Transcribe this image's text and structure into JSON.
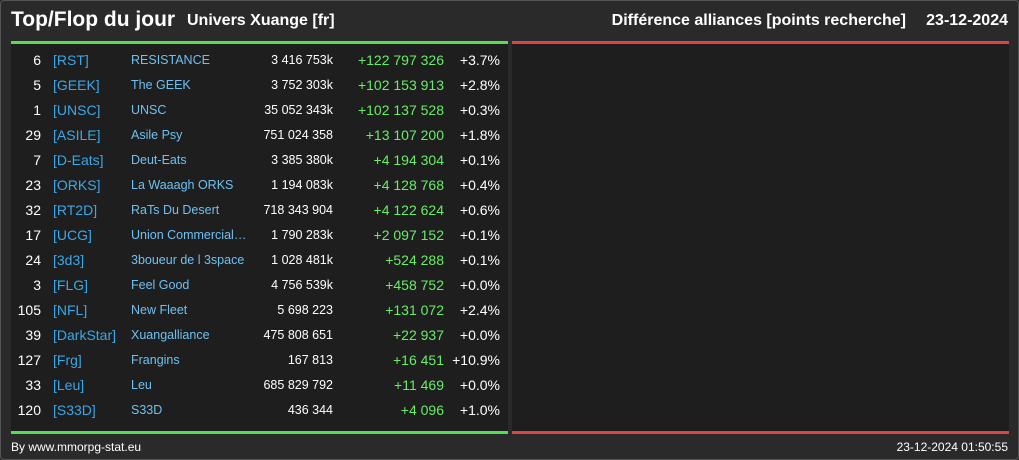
{
  "header": {
    "title": "Top/Flop du jour",
    "universe": "Univers Xuange [fr]",
    "ranking_type": "Différence alliances [points recherche]",
    "date": "23-12-2024"
  },
  "top_rows": [
    {
      "rank": "6",
      "tag": "[RST]",
      "name": "RESISTANCE",
      "points": "3 416 753k",
      "diff": "+122 797 326",
      "pct": "+3.7%"
    },
    {
      "rank": "5",
      "tag": "[GEEK]",
      "name": "The GEEK",
      "points": "3 752 303k",
      "diff": "+102 153 913",
      "pct": "+2.8%"
    },
    {
      "rank": "1",
      "tag": "[UNSC]",
      "name": "UNSC",
      "points": "35 052 343k",
      "diff": "+102 137 528",
      "pct": "+0.3%"
    },
    {
      "rank": "29",
      "tag": "[ASILE]",
      "name": "Asile Psy",
      "points": "751 024 358",
      "diff": "+13 107 200",
      "pct": "+1.8%"
    },
    {
      "rank": "7",
      "tag": "[D-Eats]",
      "name": "Deut-Eats",
      "points": "3 385 380k",
      "diff": "+4 194 304",
      "pct": "+0.1%"
    },
    {
      "rank": "23",
      "tag": "[ORKS]",
      "name": "La Waaagh ORKS",
      "points": "1 194 083k",
      "diff": "+4 128 768",
      "pct": "+0.4%"
    },
    {
      "rank": "32",
      "tag": "[RT2D]",
      "name": "RaTs Du Desert",
      "points": "718 343 904",
      "diff": "+4 122 624",
      "pct": "+0.6%"
    },
    {
      "rank": "17",
      "tag": "[UCG]",
      "name": "Union Commerciale…",
      "points": "1 790 283k",
      "diff": "+2 097 152",
      "pct": "+0.1%"
    },
    {
      "rank": "24",
      "tag": "[3d3]",
      "name": "3boueur de l 3space",
      "points": "1 028 481k",
      "diff": "+524 288",
      "pct": "+0.1%"
    },
    {
      "rank": "3",
      "tag": "[FLG]",
      "name": "Feel Good",
      "points": "4 756 539k",
      "diff": "+458 752",
      "pct": "+0.0%"
    },
    {
      "rank": "105",
      "tag": "[NFL]",
      "name": "New Fleet",
      "points": "5 698 223",
      "diff": "+131 072",
      "pct": "+2.4%"
    },
    {
      "rank": "39",
      "tag": "[DarkStar]",
      "name": "Xuangalliance",
      "points": "475 808 651",
      "diff": "+22 937",
      "pct": "+0.0%"
    },
    {
      "rank": "127",
      "tag": "[Frg]",
      "name": "Frangins",
      "points": "167 813",
      "diff": "+16 451",
      "pct": "+10.9%"
    },
    {
      "rank": "33",
      "tag": "[Leu]",
      "name": "Leu",
      "points": "685 829 792",
      "diff": "+11 469",
      "pct": "+0.0%"
    },
    {
      "rank": "120",
      "tag": "[S33D]",
      "name": "S33D",
      "points": "436 344",
      "diff": "+4 096",
      "pct": "+1.0%"
    }
  ],
  "footer": {
    "credit": "By www.mmorpg-stat.eu",
    "timestamp": "23-12-2024 01:50:55"
  },
  "colors": {
    "top_accent": "#55dd55",
    "flop_accent": "#dd4444",
    "tag": "#3aa8e8",
    "positive": "#66ee66"
  }
}
